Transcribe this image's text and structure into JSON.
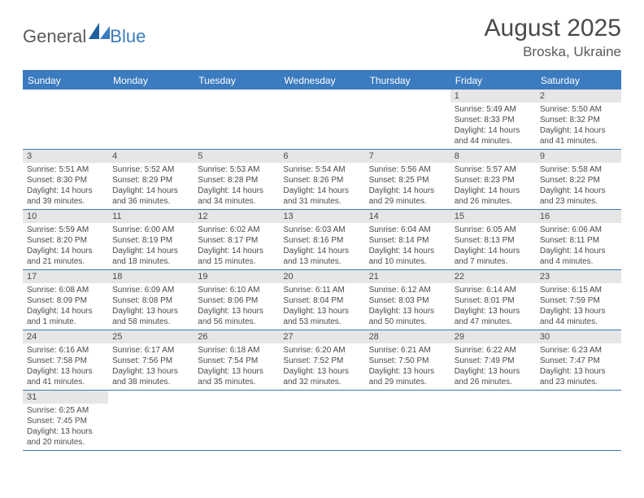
{
  "logo": {
    "part1": "General",
    "part2": "Blue"
  },
  "title": "August 2025",
  "location": "Broska, Ukraine",
  "header_color": "#3b7bbf",
  "day_names": [
    "Sunday",
    "Monday",
    "Tuesday",
    "Wednesday",
    "Thursday",
    "Friday",
    "Saturday"
  ],
  "weeks": [
    [
      null,
      null,
      null,
      null,
      null,
      {
        "n": "1",
        "sr": "5:49 AM",
        "ss": "8:33 PM",
        "dl": "14 hours and 44 minutes."
      },
      {
        "n": "2",
        "sr": "5:50 AM",
        "ss": "8:32 PM",
        "dl": "14 hours and 41 minutes."
      }
    ],
    [
      {
        "n": "3",
        "sr": "5:51 AM",
        "ss": "8:30 PM",
        "dl": "14 hours and 39 minutes."
      },
      {
        "n": "4",
        "sr": "5:52 AM",
        "ss": "8:29 PM",
        "dl": "14 hours and 36 minutes."
      },
      {
        "n": "5",
        "sr": "5:53 AM",
        "ss": "8:28 PM",
        "dl": "14 hours and 34 minutes."
      },
      {
        "n": "6",
        "sr": "5:54 AM",
        "ss": "8:26 PM",
        "dl": "14 hours and 31 minutes."
      },
      {
        "n": "7",
        "sr": "5:56 AM",
        "ss": "8:25 PM",
        "dl": "14 hours and 29 minutes."
      },
      {
        "n": "8",
        "sr": "5:57 AM",
        "ss": "8:23 PM",
        "dl": "14 hours and 26 minutes."
      },
      {
        "n": "9",
        "sr": "5:58 AM",
        "ss": "8:22 PM",
        "dl": "14 hours and 23 minutes."
      }
    ],
    [
      {
        "n": "10",
        "sr": "5:59 AM",
        "ss": "8:20 PM",
        "dl": "14 hours and 21 minutes."
      },
      {
        "n": "11",
        "sr": "6:00 AM",
        "ss": "8:19 PM",
        "dl": "14 hours and 18 minutes."
      },
      {
        "n": "12",
        "sr": "6:02 AM",
        "ss": "8:17 PM",
        "dl": "14 hours and 15 minutes."
      },
      {
        "n": "13",
        "sr": "6:03 AM",
        "ss": "8:16 PM",
        "dl": "14 hours and 13 minutes."
      },
      {
        "n": "14",
        "sr": "6:04 AM",
        "ss": "8:14 PM",
        "dl": "14 hours and 10 minutes."
      },
      {
        "n": "15",
        "sr": "6:05 AM",
        "ss": "8:13 PM",
        "dl": "14 hours and 7 minutes."
      },
      {
        "n": "16",
        "sr": "6:06 AM",
        "ss": "8:11 PM",
        "dl": "14 hours and 4 minutes."
      }
    ],
    [
      {
        "n": "17",
        "sr": "6:08 AM",
        "ss": "8:09 PM",
        "dl": "14 hours and 1 minute."
      },
      {
        "n": "18",
        "sr": "6:09 AM",
        "ss": "8:08 PM",
        "dl": "13 hours and 58 minutes."
      },
      {
        "n": "19",
        "sr": "6:10 AM",
        "ss": "8:06 PM",
        "dl": "13 hours and 56 minutes."
      },
      {
        "n": "20",
        "sr": "6:11 AM",
        "ss": "8:04 PM",
        "dl": "13 hours and 53 minutes."
      },
      {
        "n": "21",
        "sr": "6:12 AM",
        "ss": "8:03 PM",
        "dl": "13 hours and 50 minutes."
      },
      {
        "n": "22",
        "sr": "6:14 AM",
        "ss": "8:01 PM",
        "dl": "13 hours and 47 minutes."
      },
      {
        "n": "23",
        "sr": "6:15 AM",
        "ss": "7:59 PM",
        "dl": "13 hours and 44 minutes."
      }
    ],
    [
      {
        "n": "24",
        "sr": "6:16 AM",
        "ss": "7:58 PM",
        "dl": "13 hours and 41 minutes."
      },
      {
        "n": "25",
        "sr": "6:17 AM",
        "ss": "7:56 PM",
        "dl": "13 hours and 38 minutes."
      },
      {
        "n": "26",
        "sr": "6:18 AM",
        "ss": "7:54 PM",
        "dl": "13 hours and 35 minutes."
      },
      {
        "n": "27",
        "sr": "6:20 AM",
        "ss": "7:52 PM",
        "dl": "13 hours and 32 minutes."
      },
      {
        "n": "28",
        "sr": "6:21 AM",
        "ss": "7:50 PM",
        "dl": "13 hours and 29 minutes."
      },
      {
        "n": "29",
        "sr": "6:22 AM",
        "ss": "7:49 PM",
        "dl": "13 hours and 26 minutes."
      },
      {
        "n": "30",
        "sr": "6:23 AM",
        "ss": "7:47 PM",
        "dl": "13 hours and 23 minutes."
      }
    ],
    [
      {
        "n": "31",
        "sr": "6:25 AM",
        "ss": "7:45 PM",
        "dl": "13 hours and 20 minutes."
      },
      null,
      null,
      null,
      null,
      null,
      null
    ]
  ],
  "labels": {
    "sunrise": "Sunrise:",
    "sunset": "Sunset:",
    "daylight": "Daylight:"
  }
}
